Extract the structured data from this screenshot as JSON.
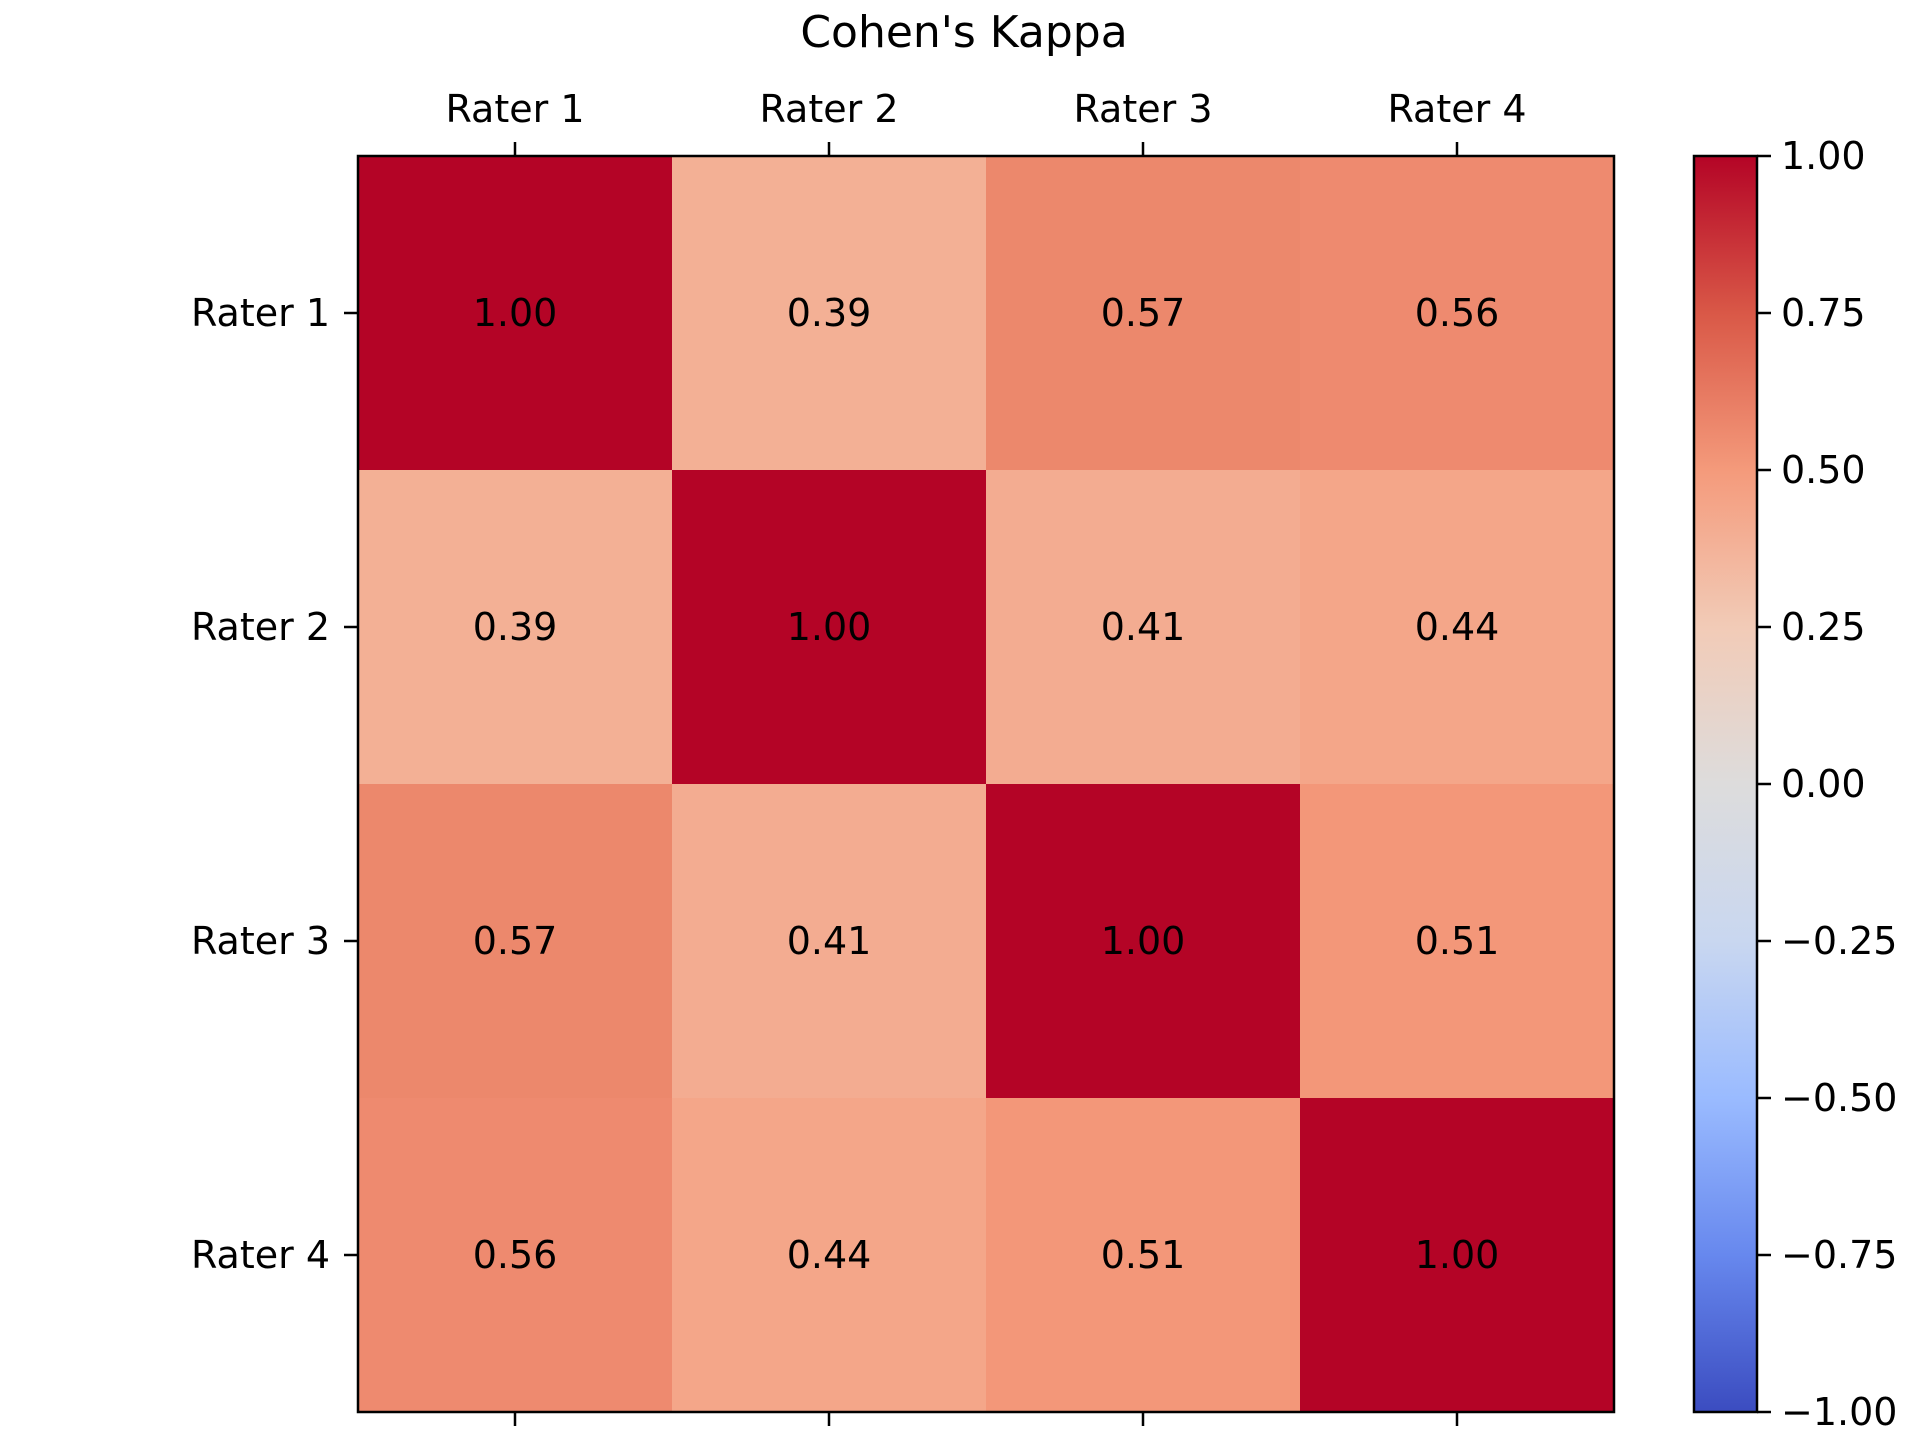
{
  "chart_data": {
    "type": "heatmap",
    "title": "Cohen's Kappa",
    "xlabel": "",
    "ylabel": "",
    "x_categories": [
      "Rater 1",
      "Rater 2",
      "Rater 3",
      "Rater 4"
    ],
    "y_categories": [
      "Rater 1",
      "Rater 2",
      "Rater 3",
      "Rater 4"
    ],
    "values": [
      [
        1.0,
        0.39,
        0.57,
        0.56
      ],
      [
        0.39,
        1.0,
        0.41,
        0.44
      ],
      [
        0.57,
        0.41,
        1.0,
        0.51
      ],
      [
        0.56,
        0.44,
        0.51,
        1.0
      ]
    ],
    "cell_labels": [
      [
        "1.00",
        "0.39",
        "0.57",
        "0.56"
      ],
      [
        "0.39",
        "1.00",
        "0.41",
        "0.44"
      ],
      [
        "0.57",
        "0.41",
        "1.00",
        "0.51"
      ],
      [
        "0.56",
        "0.44",
        "0.51",
        "1.00"
      ]
    ],
    "colormap": "coolwarm",
    "colorbar": {
      "range": [
        -1.0,
        1.0
      ],
      "ticks": [
        1.0,
        0.75,
        0.5,
        0.25,
        0.0,
        -0.25,
        -0.5,
        -0.75,
        -1.0
      ],
      "tick_labels": [
        "1.00",
        "0.75",
        "0.50",
        "0.25",
        "0.00",
        "−0.25",
        "−0.50",
        "−0.75",
        "−1.00"
      ]
    },
    "x_tick_position": "top",
    "grid": false,
    "colors": {
      "cmap_stops": [
        "#3b4cc0",
        "#6788ee",
        "#9abbff",
        "#c9d7f0",
        "#dddcdc",
        "#f2cbb7",
        "#f49a7b",
        "#d95847",
        "#b40426"
      ],
      "text": "#000000",
      "axes": "#000000"
    }
  }
}
